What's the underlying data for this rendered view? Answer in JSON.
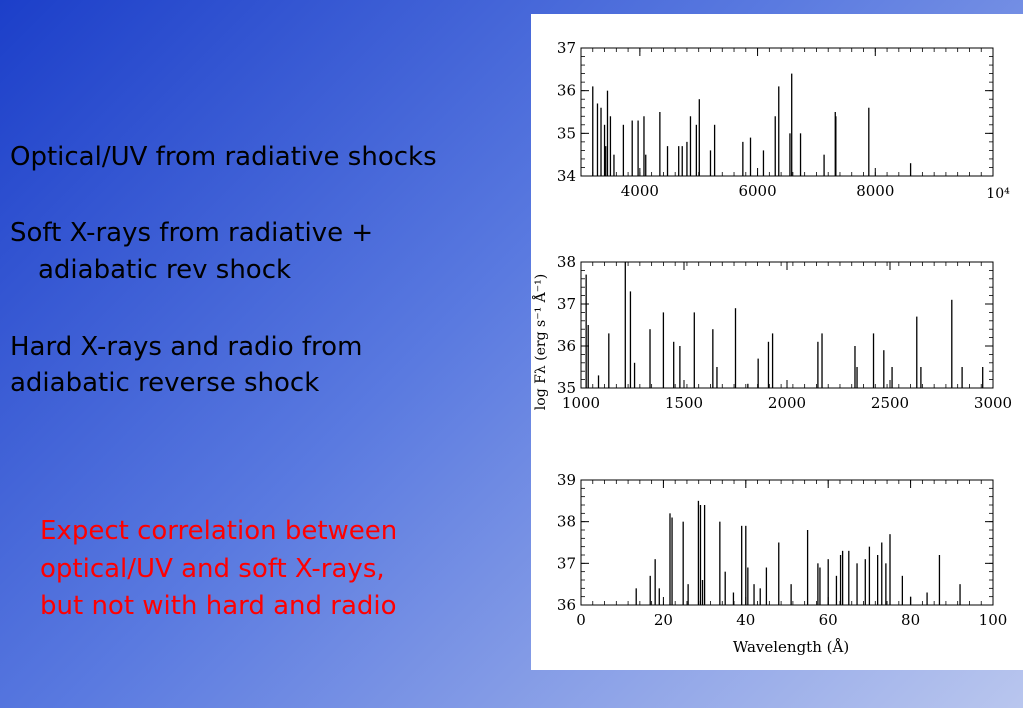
{
  "slide": {
    "bullets": [
      [
        "Optical/UV from radiative shocks"
      ],
      [
        "Soft X-rays from radiative +",
        "adiabatic rev shock"
      ],
      [
        "Hard X-rays and radio from",
        "adiabatic reverse shock"
      ]
    ],
    "note": [
      "Expect correlation between",
      "optical/UV and soft X-rays,",
      "but not with hard and radio"
    ],
    "colors": {
      "note": "#ff0000",
      "background_top": "#1c3fc9",
      "background_bottom": "#b9c6ee"
    }
  },
  "figure": {
    "ylabel": "log Fλ (erg s⁻¹ Å⁻¹)",
    "xlabel": "Wavelength (Å)"
  },
  "chart_data": [
    {
      "type": "bar",
      "xlim": [
        3000,
        10000
      ],
      "ylim": [
        34,
        37
      ],
      "xticks": [
        4000,
        6000,
        8000
      ],
      "xtick_labels": [
        "4000",
        "6000",
        "8000"
      ],
      "extra_label": "10⁴",
      "yticks": [
        34,
        35,
        36,
        37
      ],
      "ytick_labels": [
        "34",
        "35",
        "36",
        "37"
      ],
      "x": [
        3200,
        3280,
        3340,
        3400,
        3420,
        3450,
        3500,
        3560,
        3720,
        3870,
        3970,
        4070,
        4100,
        4340,
        4470,
        4660,
        4720,
        4800,
        4860,
        4960,
        5010,
        5200,
        5270,
        5750,
        5880,
        6100,
        6300,
        6360,
        6550,
        6580,
        6730,
        7130,
        7320,
        7330,
        7890,
        8600
      ],
      "y": [
        36.1,
        35.7,
        35.6,
        35.2,
        34.7,
        36.0,
        35.4,
        34.5,
        35.2,
        35.3,
        35.3,
        35.4,
        34.5,
        35.5,
        34.7,
        34.7,
        34.7,
        34.8,
        35.4,
        35.2,
        35.8,
        34.6,
        35.2,
        34.8,
        34.9,
        34.6,
        35.4,
        36.1,
        35.0,
        36.4,
        35.0,
        34.5,
        35.5,
        35.4,
        35.6,
        34.3
      ]
    },
    {
      "type": "bar",
      "xlim": [
        1000,
        3000
      ],
      "ylim": [
        35,
        38
      ],
      "xticks": [
        1000,
        1500,
        2000,
        2500,
        3000
      ],
      "xtick_labels": [
        "1000",
        "1500",
        "2000",
        "2500",
        "3000"
      ],
      "yticks": [
        35,
        36,
        37,
        38
      ],
      "ytick_labels": [
        "35",
        "36",
        "37",
        "38"
      ],
      "x": [
        1025,
        1035,
        1085,
        1135,
        1215,
        1240,
        1260,
        1335,
        1400,
        1450,
        1480,
        1550,
        1640,
        1660,
        1750,
        1810,
        1860,
        1910,
        1930,
        2150,
        2170,
        2330,
        2340,
        2420,
        2470,
        2510,
        2630,
        2650,
        2800,
        2850,
        2950
      ],
      "y": [
        37.7,
        36.5,
        35.3,
        36.3,
        38.0,
        37.3,
        35.6,
        36.4,
        36.8,
        36.1,
        36.0,
        36.8,
        36.4,
        35.5,
        36.9,
        35.1,
        35.7,
        36.1,
        36.3,
        36.1,
        36.3,
        36.0,
        35.5,
        36.3,
        35.9,
        35.5,
        36.7,
        35.5,
        37.1,
        35.5,
        35.5
      ]
    },
    {
      "type": "bar",
      "xlim": [
        0,
        100
      ],
      "ylim": [
        36,
        39
      ],
      "xticks": [
        0,
        20,
        40,
        60,
        80,
        100
      ],
      "xtick_labels": [
        "0",
        "20",
        "40",
        "60",
        "80",
        "100"
      ],
      "yticks": [
        36,
        37,
        38,
        39
      ],
      "ytick_labels": [
        "36",
        "37",
        "38",
        "39"
      ],
      "x": [
        13.4,
        16.8,
        18.0,
        19.0,
        21.6,
        22.1,
        24.8,
        26.0,
        28.5,
        29.0,
        29.5,
        30.0,
        33.7,
        35.0,
        37.0,
        39.0,
        40.0,
        40.5,
        42.0,
        43.5,
        45.0,
        48.0,
        51.0,
        55.0,
        57.5,
        58.0,
        60.0,
        62.0,
        63.0,
        63.5,
        65.0,
        67.0,
        69.0,
        70.0,
        72.0,
        73.0,
        74.0,
        75.0,
        78.0,
        80.0,
        84.0,
        87.0,
        92.0
      ],
      "y": [
        36.4,
        36.7,
        37.1,
        36.4,
        38.2,
        38.1,
        38.0,
        36.5,
        38.5,
        38.4,
        36.6,
        38.4,
        38.0,
        36.8,
        36.3,
        37.9,
        37.9,
        36.9,
        36.5,
        36.4,
        36.9,
        37.5,
        36.5,
        37.8,
        37.0,
        36.9,
        37.1,
        36.7,
        37.2,
        37.3,
        37.3,
        37.0,
        37.1,
        37.4,
        37.2,
        37.5,
        37.0,
        37.7,
        36.7,
        36.2,
        36.3,
        37.2,
        36.5
      ]
    }
  ]
}
